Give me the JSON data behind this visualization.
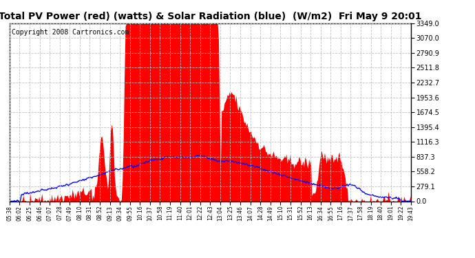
{
  "title": "Total PV Power (red) (watts) & Solar Radiation (blue)  (W/m2)  Fri May 9 20:01",
  "copyright": "Copyright 2008 Cartronics.com",
  "yticks": [
    0.0,
    279.1,
    558.2,
    837.3,
    1116.3,
    1395.4,
    1674.5,
    1953.6,
    2232.7,
    2511.8,
    2790.9,
    3070.0,
    3349.0
  ],
  "xtick_labels": [
    "05:38",
    "06:02",
    "06:25",
    "06:46",
    "07:07",
    "07:28",
    "07:49",
    "08:10",
    "08:31",
    "08:52",
    "09:13",
    "09:34",
    "09:55",
    "10:16",
    "10:37",
    "10:58",
    "11:19",
    "11:40",
    "12:01",
    "12:22",
    "12:43",
    "13:04",
    "13:25",
    "13:46",
    "14:07",
    "14:28",
    "14:49",
    "15:10",
    "15:31",
    "15:52",
    "16:13",
    "16:34",
    "16:55",
    "17:16",
    "17:37",
    "17:58",
    "18:19",
    "18:40",
    "19:01",
    "19:22",
    "19:43"
  ],
  "ymax": 3349.0,
  "ymin": 0.0,
  "background_color": "#ffffff",
  "plot_bg_color": "#ffffff",
  "grid_color": "#c0c0c0",
  "fill_color": "#ff0000",
  "line_color": "#0000ff",
  "title_fontsize": 10,
  "copyright_fontsize": 7
}
